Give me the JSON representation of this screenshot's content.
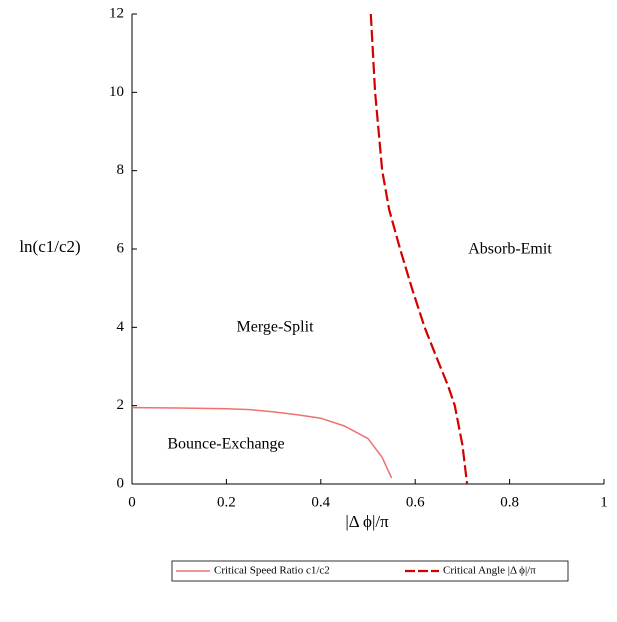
{
  "chart_data": {
    "type": "line",
    "xlabel": "|Δ ϕ|/π",
    "ylabel": "ln(c1/c2)",
    "annotations": [
      "Merge-Split",
      "Absorb-Emit",
      "Bounce-Exchange"
    ],
    "xlim": [
      0,
      1
    ],
    "xticks": [
      0,
      0.2,
      0.4,
      0.6,
      0.8,
      1
    ],
    "ylim": [
      0,
      12
    ],
    "yticks": [
      0,
      2,
      4,
      6,
      8,
      10,
      12
    ],
    "series": [
      {
        "name": "Critical Speed Ratio c1/c2",
        "color": "#f07070",
        "style": "solid",
        "x": [
          0,
          0.1,
          0.2,
          0.25,
          0.3,
          0.35,
          0.4,
          0.45,
          0.5,
          0.53,
          0.55
        ],
        "values": [
          1.95,
          1.94,
          1.92,
          1.9,
          1.84,
          1.77,
          1.68,
          1.48,
          1.16,
          0.68,
          0.15
        ]
      },
      {
        "name": "Critical Angle |Δ ϕ|/π",
        "color": "#d40000",
        "style": "dashed",
        "x": [
          0.506,
          0.515,
          0.53,
          0.545,
          0.568,
          0.593,
          0.62,
          0.653,
          0.67,
          0.684,
          0.7,
          0.71
        ],
        "values": [
          12,
          10,
          8,
          7,
          6,
          5,
          4,
          3,
          2.5,
          2,
          1,
          0
        ]
      }
    ]
  }
}
